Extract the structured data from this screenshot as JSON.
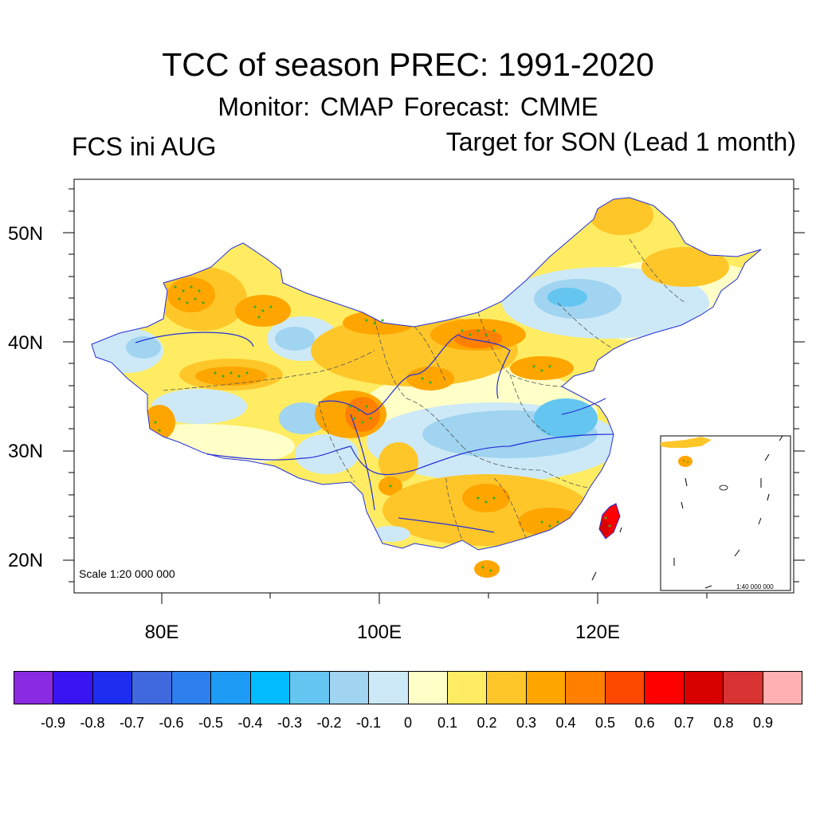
{
  "map": {
    "title": "TCC of season PREC: 1991-2020",
    "subtitle": "Monitor: CMAP   Forecast: CMME",
    "left_string": "FCS ini AUG",
    "right_string": "Target for SON (Lead 1 month)",
    "scale_main": "Scale 1:20 000 000",
    "scale_inset": "1:40 000 000",
    "lat_labels": [
      "50N",
      "40N",
      "30N",
      "20N"
    ],
    "lon_labels": [
      "80E",
      "100E",
      "120E"
    ],
    "colors": {
      "coast_river": "#2430d8",
      "boundary": "#555555",
      "significance_dots": "#2ab02a"
    }
  },
  "colorbar": {
    "labels": [
      "-0.9",
      "-0.8",
      "-0.7",
      "-0.6",
      "-0.5",
      "-0.4",
      "-0.3",
      "-0.2",
      "-0.1",
      "0",
      "0.1",
      "0.2",
      "0.3",
      "0.4",
      "0.5",
      "0.6",
      "0.7",
      "0.8",
      "0.9"
    ],
    "colors": [
      "#8a2be2",
      "#3a14f0",
      "#1e2ef0",
      "#4069e0",
      "#2e7fee",
      "#1e9bf5",
      "#02bcff",
      "#64c6f0",
      "#a0d4f0",
      "#cde9f7",
      "#ffffc8",
      "#ffec62",
      "#ffc62a",
      "#ffa500",
      "#ff8000",
      "#ff4800",
      "#ff0000",
      "#d90000",
      "#d83232",
      "#ffb0b0"
    ]
  }
}
